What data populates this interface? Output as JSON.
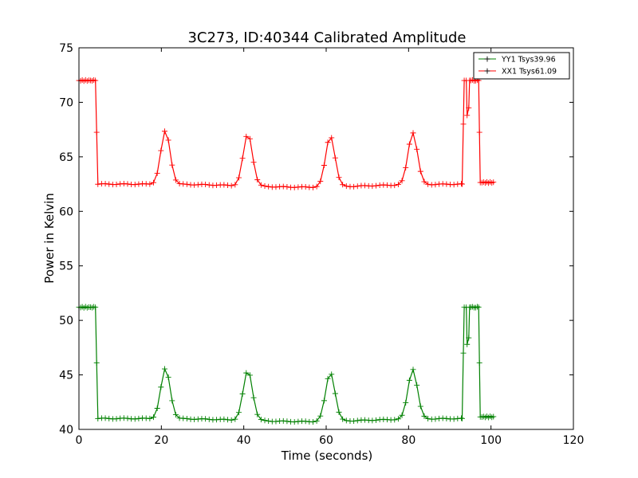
{
  "chart_data": {
    "type": "line",
    "title": "3C273, ID:40344 Calibrated Amplitude",
    "xlabel": "Time (seconds)",
    "ylabel": "Power in Kelvin",
    "xlim": [
      0,
      120
    ],
    "ylim": [
      40,
      75
    ],
    "x_ticks": [
      "0",
      "20",
      "40",
      "60",
      "80",
      "100",
      "120"
    ],
    "y_ticks": [
      "40",
      "45",
      "50",
      "55",
      "60",
      "65",
      "70",
      "75"
    ],
    "grid": false,
    "legend_position": "top-right",
    "series": [
      {
        "name": "YY1 Tsys39.96",
        "color": "#008000",
        "marker": "+",
        "baseline": 41.0,
        "pre_level": 51.2,
        "post_level": 51.2,
        "pre_drop_time": 4.0,
        "post_rise_time": 93.0,
        "post_drop_time": 97.0,
        "end_time": 101.0,
        "peaks": [
          {
            "time": 21,
            "value": 45.6
          },
          {
            "time": 41,
            "value": 45.6
          },
          {
            "time": 61,
            "value": 45.5
          },
          {
            "time": 81,
            "value": 45.6
          }
        ],
        "dips": [
          {
            "time": 93.3,
            "value": 47.0
          },
          {
            "time": 94.2,
            "value": 47.8
          },
          {
            "time": 94.6,
            "value": 48.4
          }
        ]
      },
      {
        "name": "XX1 Tsys61.09",
        "color": "#ff0000",
        "marker": "+",
        "baseline": 62.5,
        "pre_level": 72.0,
        "post_level": 72.0,
        "pre_drop_time": 4.0,
        "post_rise_time": 93.0,
        "post_drop_time": 97.0,
        "end_time": 101.0,
        "peaks": [
          {
            "time": 21,
            "value": 67.4
          },
          {
            "time": 41,
            "value": 67.3
          },
          {
            "time": 61,
            "value": 67.2
          },
          {
            "time": 81,
            "value": 67.3
          }
        ],
        "dips": [
          {
            "time": 93.3,
            "value": 68.0
          },
          {
            "time": 94.2,
            "value": 68.8
          },
          {
            "time": 94.6,
            "value": 69.5
          }
        ]
      }
    ]
  }
}
